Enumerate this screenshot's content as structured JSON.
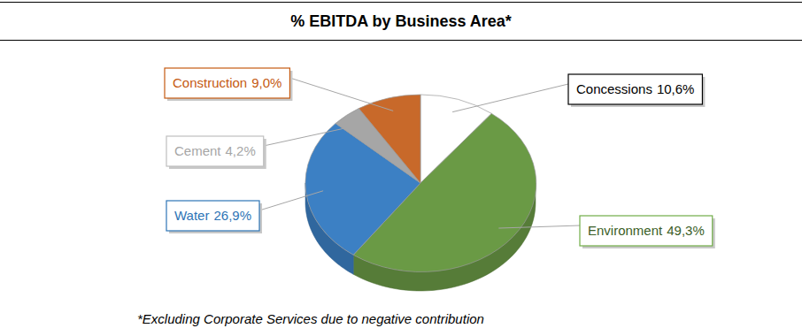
{
  "chart_data": {
    "type": "pie",
    "title": "% EBITDA by Business Area*",
    "categories": [
      "Concessions",
      "Environment",
      "Water",
      "Cement",
      "Construction"
    ],
    "values": [
      10.6,
      49.3,
      26.9,
      4.2,
      9.0
    ],
    "value_labels": [
      "10,6%",
      "49,3%",
      "26,9%",
      "4,2%",
      "9,0%"
    ],
    "colors": [
      "#ffffff",
      "#6a9a45",
      "#3c80c4",
      "#a6a6a6",
      "#c8692a"
    ],
    "data_labels": true,
    "annotations": [
      "*Excluding Corporate Services due to negative contribution"
    ]
  }
}
